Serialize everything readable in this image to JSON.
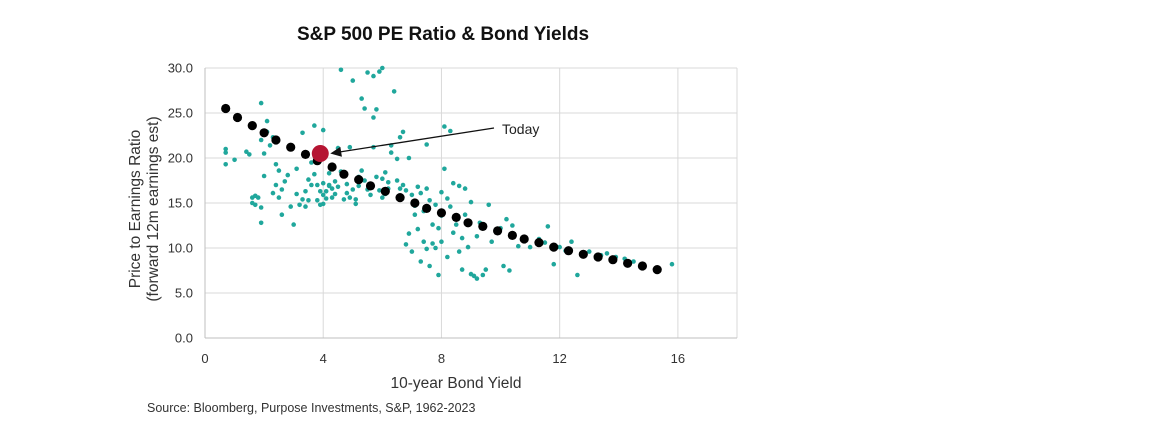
{
  "chart_data": {
    "type": "scatter",
    "title": "S&P 500 PE Ratio & Bond Yields",
    "xlabel": "10-year Bond Yield",
    "ylabel_lines": [
      "Price to Earnings Ratio",
      "(forward 12m earnings est)"
    ],
    "xlim": [
      0,
      18
    ],
    "ylim": [
      0,
      30
    ],
    "xticks": [
      "0",
      "4",
      "8",
      "12",
      "16"
    ],
    "yticks": [
      "0.0",
      "5.0",
      "10.0",
      "15.0",
      "20.0",
      "25.0",
      "30.0"
    ],
    "grid": true,
    "series": [
      {
        "color": "#20a79c",
        "marker": "small-dot",
        "points": [
          [
            0.7,
            21.0
          ],
          [
            0.7,
            20.6
          ],
          [
            0.7,
            19.3
          ],
          [
            1.0,
            19.8
          ],
          [
            1.4,
            20.7
          ],
          [
            1.5,
            20.4
          ],
          [
            1.6,
            15.6
          ],
          [
            1.6,
            15.0
          ],
          [
            1.7,
            15.8
          ],
          [
            1.7,
            14.8
          ],
          [
            1.8,
            15.6
          ],
          [
            1.9,
            14.5
          ],
          [
            1.9,
            26.1
          ],
          [
            1.9,
            12.8
          ],
          [
            1.9,
            22.0
          ],
          [
            2.0,
            20.5
          ],
          [
            2.0,
            18.0
          ],
          [
            2.1,
            22.9
          ],
          [
            2.1,
            24.1
          ],
          [
            2.2,
            21.4
          ],
          [
            2.3,
            22.3
          ],
          [
            2.3,
            16.1
          ],
          [
            2.4,
            17.0
          ],
          [
            2.4,
            19.3
          ],
          [
            2.5,
            15.6
          ],
          [
            2.5,
            18.6
          ],
          [
            2.6,
            16.5
          ],
          [
            2.6,
            13.7
          ],
          [
            2.7,
            17.4
          ],
          [
            2.8,
            18.1
          ],
          [
            2.9,
            14.6
          ],
          [
            3.0,
            12.6
          ],
          [
            3.1,
            18.8
          ],
          [
            3.1,
            16.0
          ],
          [
            3.2,
            14.8
          ],
          [
            3.3,
            15.4
          ],
          [
            3.3,
            22.8
          ],
          [
            3.4,
            14.6
          ],
          [
            3.4,
            16.3
          ],
          [
            3.5,
            15.3
          ],
          [
            3.5,
            17.6
          ],
          [
            3.6,
            17.0
          ],
          [
            3.6,
            19.5
          ],
          [
            3.7,
            23.6
          ],
          [
            3.7,
            18.2
          ],
          [
            3.8,
            17.0
          ],
          [
            3.8,
            15.3
          ],
          [
            3.9,
            14.8
          ],
          [
            3.9,
            16.3
          ],
          [
            4.0,
            15.9
          ],
          [
            4.0,
            17.2
          ],
          [
            4.0,
            14.9
          ],
          [
            4.0,
            23.1
          ],
          [
            4.1,
            16.3
          ],
          [
            4.1,
            15.5
          ],
          [
            4.2,
            16.9
          ],
          [
            4.2,
            18.3
          ],
          [
            4.2,
            17.0
          ],
          [
            4.3,
            16.6
          ],
          [
            4.3,
            15.6
          ],
          [
            4.4,
            17.4
          ],
          [
            4.4,
            16.0
          ],
          [
            4.5,
            21.1
          ],
          [
            4.5,
            16.8
          ],
          [
            4.6,
            29.8
          ],
          [
            4.6,
            18.5
          ],
          [
            4.7,
            15.4
          ],
          [
            4.8,
            16.1
          ],
          [
            4.8,
            17.1
          ],
          [
            4.9,
            15.6
          ],
          [
            4.9,
            21.2
          ],
          [
            5.0,
            28.6
          ],
          [
            5.0,
            16.5
          ],
          [
            5.1,
            15.4
          ],
          [
            5.1,
            14.9
          ],
          [
            5.2,
            16.9
          ],
          [
            5.2,
            17.9
          ],
          [
            5.3,
            18.6
          ],
          [
            5.3,
            26.6
          ],
          [
            5.4,
            25.5
          ],
          [
            5.4,
            17.5
          ],
          [
            5.5,
            29.5
          ],
          [
            5.5,
            16.5
          ],
          [
            5.6,
            15.9
          ],
          [
            5.7,
            29.1
          ],
          [
            5.7,
            21.2
          ],
          [
            5.7,
            24.5
          ],
          [
            5.8,
            25.4
          ],
          [
            5.8,
            17.9
          ],
          [
            5.9,
            29.6
          ],
          [
            5.9,
            16.4
          ],
          [
            6.0,
            17.7
          ],
          [
            6.0,
            30.0
          ],
          [
            6.0,
            15.6
          ],
          [
            6.1,
            16.0
          ],
          [
            6.1,
            18.4
          ],
          [
            6.2,
            16.6
          ],
          [
            6.2,
            17.3
          ],
          [
            6.3,
            21.4
          ],
          [
            6.3,
            20.6
          ],
          [
            6.4,
            27.4
          ],
          [
            6.5,
            17.5
          ],
          [
            6.5,
            19.9
          ],
          [
            6.6,
            16.6
          ],
          [
            6.6,
            22.3
          ],
          [
            6.7,
            22.9
          ],
          [
            6.7,
            17.0
          ],
          [
            6.8,
            16.4
          ],
          [
            6.8,
            10.4
          ],
          [
            6.9,
            11.6
          ],
          [
            6.9,
            20.0
          ],
          [
            7.0,
            15.9
          ],
          [
            7.0,
            9.6
          ],
          [
            7.1,
            14.7
          ],
          [
            7.1,
            13.7
          ],
          [
            7.2,
            16.8
          ],
          [
            7.2,
            12.1
          ],
          [
            7.3,
            8.5
          ],
          [
            7.3,
            16.1
          ],
          [
            7.4,
            14.1
          ],
          [
            7.4,
            10.7
          ],
          [
            7.5,
            9.9
          ],
          [
            7.5,
            16.6
          ],
          [
            7.5,
            21.5
          ],
          [
            7.6,
            15.3
          ],
          [
            7.6,
            8.0
          ],
          [
            7.7,
            12.6
          ],
          [
            7.7,
            10.5
          ],
          [
            7.8,
            14.8
          ],
          [
            7.8,
            10.0
          ],
          [
            7.9,
            12.2
          ],
          [
            7.9,
            7.0
          ],
          [
            8.0,
            10.7
          ],
          [
            8.0,
            16.2
          ],
          [
            8.0,
            13.6
          ],
          [
            8.1,
            23.5
          ],
          [
            8.1,
            18.8
          ],
          [
            8.2,
            15.5
          ],
          [
            8.2,
            9.0
          ],
          [
            8.3,
            23.0
          ],
          [
            8.3,
            14.6
          ],
          [
            8.4,
            17.2
          ],
          [
            8.4,
            11.7
          ],
          [
            8.5,
            12.6
          ],
          [
            8.6,
            9.6
          ],
          [
            8.6,
            16.9
          ],
          [
            8.7,
            11.1
          ],
          [
            8.7,
            7.6
          ],
          [
            8.8,
            16.6
          ],
          [
            8.8,
            13.7
          ],
          [
            8.9,
            10.1
          ],
          [
            9.0,
            7.1
          ],
          [
            9.0,
            15.1
          ],
          [
            9.1,
            6.9
          ],
          [
            9.2,
            11.3
          ],
          [
            9.2,
            6.6
          ],
          [
            9.3,
            12.8
          ],
          [
            9.4,
            7.0
          ],
          [
            9.5,
            7.6
          ],
          [
            9.6,
            14.8
          ],
          [
            9.7,
            10.7
          ],
          [
            10.0,
            12.2
          ],
          [
            10.1,
            8.0
          ],
          [
            10.2,
            13.2
          ],
          [
            10.3,
            7.5
          ],
          [
            10.4,
            12.5
          ],
          [
            10.6,
            10.2
          ],
          [
            11.0,
            10.1
          ],
          [
            11.3,
            11.0
          ],
          [
            11.5,
            10.6
          ],
          [
            11.6,
            12.4
          ],
          [
            11.8,
            8.2
          ],
          [
            12.0,
            10.1
          ],
          [
            12.2,
            9.7
          ],
          [
            12.4,
            10.7
          ],
          [
            12.6,
            7.0
          ],
          [
            13.0,
            9.6
          ],
          [
            13.4,
            9.2
          ],
          [
            13.6,
            9.4
          ],
          [
            13.9,
            9.0
          ],
          [
            14.2,
            8.8
          ],
          [
            14.5,
            8.5
          ],
          [
            15.8,
            8.2
          ]
        ]
      },
      {
        "color": "#000000",
        "marker": "large-dot",
        "points": [
          [
            0.7,
            25.5
          ],
          [
            1.1,
            24.5
          ],
          [
            1.6,
            23.6
          ],
          [
            2.0,
            22.8
          ],
          [
            2.4,
            22.0
          ],
          [
            2.9,
            21.2
          ],
          [
            3.4,
            20.4
          ],
          [
            3.8,
            19.7
          ],
          [
            4.3,
            19.0
          ],
          [
            4.7,
            18.2
          ],
          [
            5.2,
            17.6
          ],
          [
            5.6,
            16.9
          ],
          [
            6.1,
            16.3
          ],
          [
            6.6,
            15.6
          ],
          [
            7.1,
            15.0
          ],
          [
            7.5,
            14.4
          ],
          [
            8.0,
            13.9
          ],
          [
            8.5,
            13.4
          ],
          [
            8.9,
            12.8
          ],
          [
            9.4,
            12.4
          ],
          [
            9.9,
            11.9
          ],
          [
            10.4,
            11.4
          ],
          [
            10.8,
            11.0
          ],
          [
            11.3,
            10.6
          ],
          [
            11.8,
            10.1
          ],
          [
            12.3,
            9.7
          ],
          [
            12.8,
            9.3
          ],
          [
            13.3,
            9.0
          ],
          [
            13.8,
            8.7
          ],
          [
            14.3,
            8.3
          ],
          [
            14.8,
            8.0
          ],
          [
            15.3,
            7.6
          ]
        ]
      },
      {
        "color": "#b51432",
        "marker": "highlight",
        "points": [
          [
            3.9,
            20.5
          ]
        ]
      }
    ],
    "annotations": [
      {
        "text": "Today",
        "x": 3.9,
        "y": 20.5
      }
    ]
  },
  "source": "Source:  Bloomberg, Purpose  Investments, S&P, 1962-2023"
}
